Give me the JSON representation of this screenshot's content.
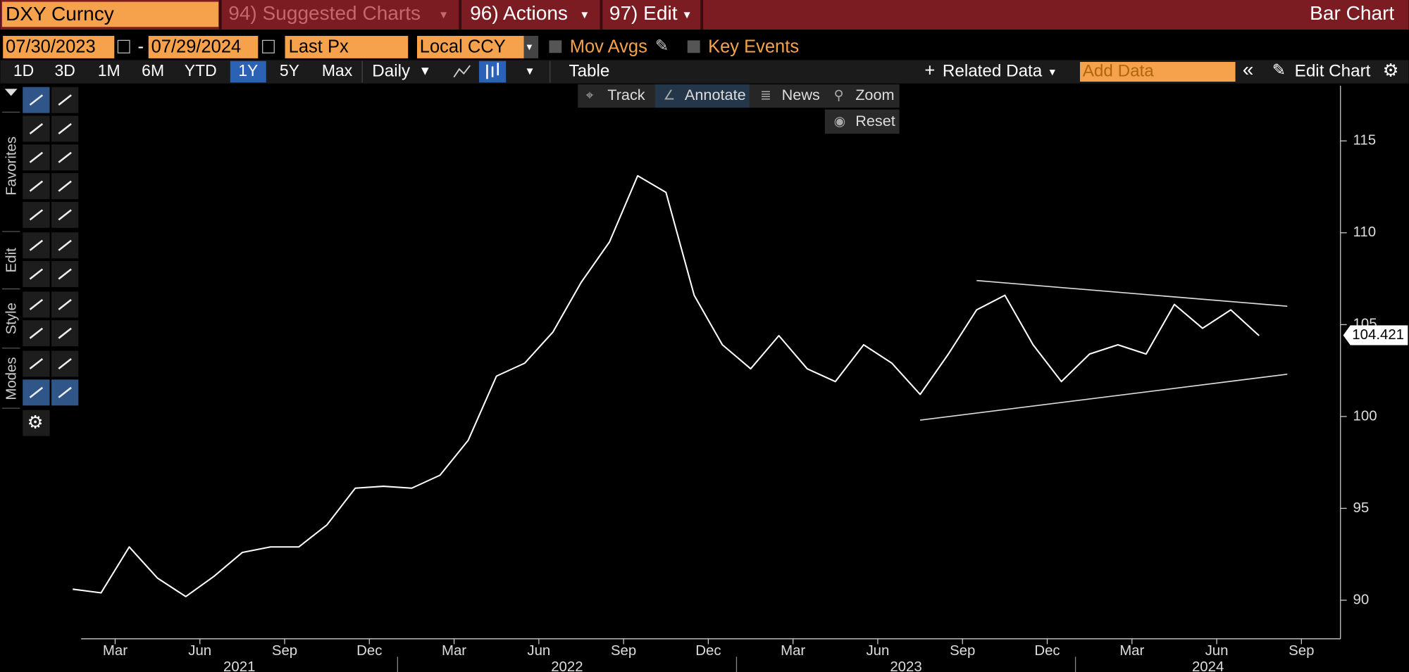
{
  "header": {
    "ticker": "DXY Curncy",
    "menu": [
      "94) Suggested Charts",
      "96) Actions",
      "97) Edit"
    ],
    "chart_kind": "Bar Chart"
  },
  "settings": {
    "start_date": "07/30/2023",
    "end_date": "07/29/2024",
    "field": "Last Px",
    "currency": "Local CCY",
    "options": [
      "Mov Avgs",
      "Key Events"
    ]
  },
  "toolbar": {
    "periods": [
      "1D",
      "3D",
      "1M",
      "6M",
      "YTD",
      "1Y",
      "5Y",
      "Max"
    ],
    "frequency": "Daily",
    "table": "Table",
    "related": "Related Data",
    "add_data": "Add Data",
    "edit_chart": "Edit Chart"
  },
  "chart_tools": [
    "Track",
    "Annotate",
    "News",
    "Zoom",
    "Reset"
  ],
  "side_tabs": [
    "Favorites",
    "Edit",
    "Style",
    "Modes"
  ],
  "chart_data": {
    "type": "line",
    "x": [
      "2021-01",
      "2021-02",
      "2021-03",
      "2021-04",
      "2021-05",
      "2021-06",
      "2021-07",
      "2021-08",
      "2021-09",
      "2021-10",
      "2021-11",
      "2021-12",
      "2022-01",
      "2022-02",
      "2022-03",
      "2022-04",
      "2022-05",
      "2022-06",
      "2022-07",
      "2022-08",
      "2022-09",
      "2022-10",
      "2022-11",
      "2022-12",
      "2023-01",
      "2023-02",
      "2023-03",
      "2023-04",
      "2023-05",
      "2023-06",
      "2023-07",
      "2023-08",
      "2023-09",
      "2023-10",
      "2023-11",
      "2023-12",
      "2024-01",
      "2024-02",
      "2024-03",
      "2024-04",
      "2024-05",
      "2024-06",
      "2024-07"
    ],
    "series": [
      {
        "color": "#ffffff",
        "values": [
          90.6,
          90.4,
          92.9,
          91.2,
          90.2,
          91.3,
          92.6,
          92.9,
          92.9,
          94.1,
          96.1,
          96.2,
          96.1,
          96.8,
          98.7,
          102.2,
          102.9,
          104.6,
          107.3,
          109.5,
          113.1,
          112.2,
          106.6,
          103.9,
          102.6,
          104.4,
          102.6,
          101.9,
          103.9,
          102.9,
          101.2,
          103.4,
          105.8,
          106.6,
          103.9,
          101.9,
          103.4,
          103.9,
          103.4,
          106.1,
          104.8,
          105.8,
          104.4
        ]
      }
    ],
    "last_value": 104.421,
    "trend_lines": [
      {
        "x": [
          "2023-09",
          "2024-08"
        ],
        "y": [
          107.4,
          106.0
        ]
      },
      {
        "x": [
          "2023-07",
          "2024-08"
        ],
        "y": [
          99.8,
          102.3
        ]
      }
    ],
    "xlim": [
      "2021-01",
      "2024-10"
    ],
    "xticks": [
      {
        "value": "2021-03",
        "label": "Mar"
      },
      {
        "value": "2021-06",
        "label": "Jun"
      },
      {
        "value": "2021-09",
        "label": "Sep"
      },
      {
        "value": "2021-12",
        "label": "Dec"
      },
      {
        "value": "2022-03",
        "label": "Mar"
      },
      {
        "value": "2022-06",
        "label": "Jun"
      },
      {
        "value": "2022-09",
        "label": "Sep"
      },
      {
        "value": "2022-12",
        "label": "Dec"
      },
      {
        "value": "2023-03",
        "label": "Mar"
      },
      {
        "value": "2023-06",
        "label": "Jun"
      },
      {
        "value": "2023-09",
        "label": "Sep"
      },
      {
        "value": "2023-12",
        "label": "Dec"
      },
      {
        "value": "2024-03",
        "label": "Mar"
      },
      {
        "value": "2024-06",
        "label": "Jun"
      },
      {
        "value": "2024-09",
        "label": "Sep"
      }
    ],
    "year_labels": [
      "2021",
      "2022",
      "2023",
      "2024"
    ],
    "ylim": [
      87.9,
      118
    ],
    "yticks": [
      90,
      95,
      100,
      105,
      110,
      115
    ]
  }
}
